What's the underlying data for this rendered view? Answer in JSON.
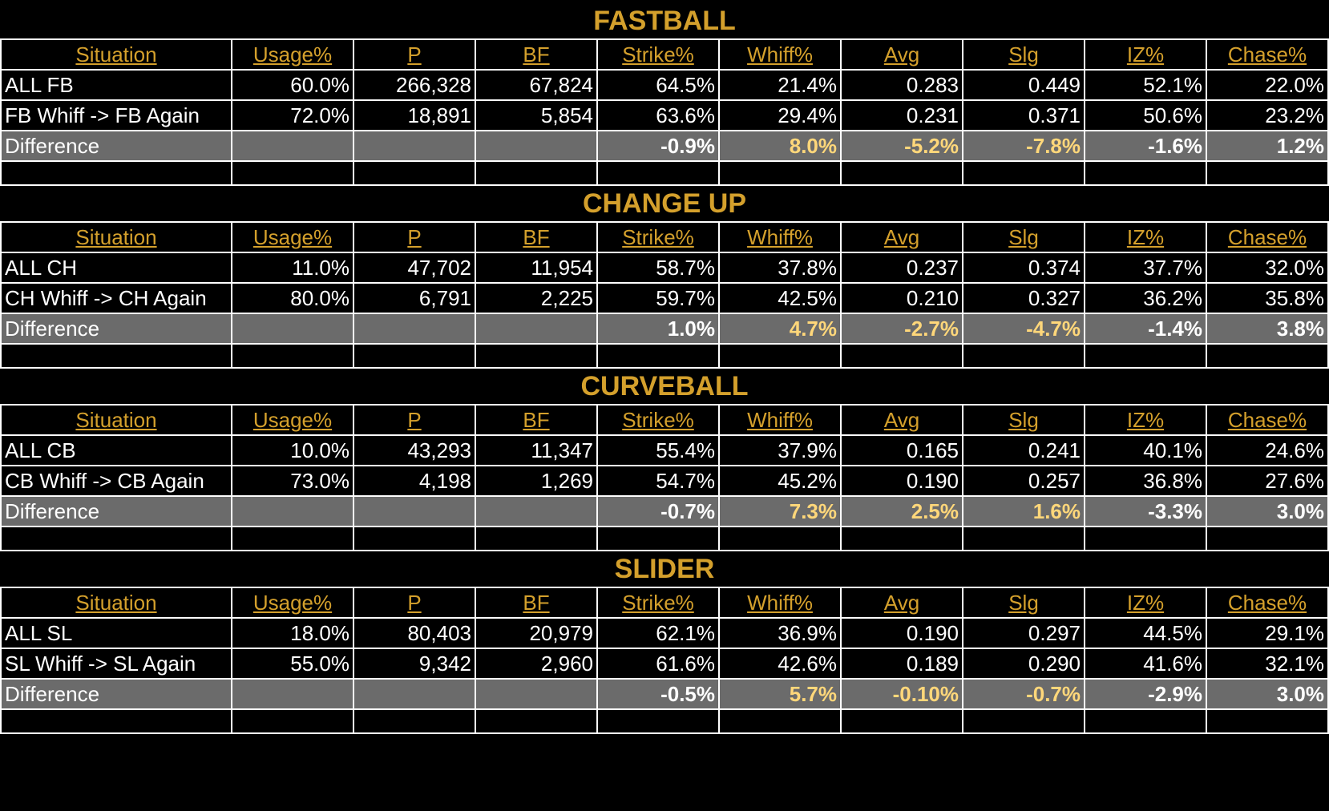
{
  "headers": [
    "Situation",
    "Usage%",
    "P",
    "BF",
    "Strike%",
    "Whiff%",
    "Avg",
    "Slg",
    "IZ%",
    "Chase%"
  ],
  "colors": {
    "background": "#000000",
    "gold": "#d4a02c",
    "diff_row": "#6b6b6b",
    "highlight": "#ffd77a",
    "text": "#ffffff"
  },
  "sections": [
    {
      "title": "FASTBALL",
      "rows": [
        [
          "ALL FB",
          "60.0%",
          "266,328",
          "67,824",
          "64.5%",
          "21.4%",
          "0.283",
          "0.449",
          "52.1%",
          "22.0%"
        ],
        [
          "FB Whiff -> FB Again",
          "72.0%",
          "18,891",
          "5,854",
          "63.6%",
          "29.4%",
          "0.231",
          "0.371",
          "50.6%",
          "23.2%"
        ]
      ],
      "diff": [
        "Difference",
        "",
        "",
        "",
        "-0.9%",
        "8.0%",
        "-5.2%",
        "-7.8%",
        "-1.6%",
        "1.2%"
      ]
    },
    {
      "title": "CHANGE UP",
      "rows": [
        [
          "ALL CH",
          "11.0%",
          "47,702",
          "11,954",
          "58.7%",
          "37.8%",
          "0.237",
          "0.374",
          "37.7%",
          "32.0%"
        ],
        [
          "CH Whiff -> CH Again",
          "80.0%",
          "6,791",
          "2,225",
          "59.7%",
          "42.5%",
          "0.210",
          "0.327",
          "36.2%",
          "35.8%"
        ]
      ],
      "diff": [
        "Difference",
        "",
        "",
        "",
        "1.0%",
        "4.7%",
        "-2.7%",
        "-4.7%",
        "-1.4%",
        "3.8%"
      ]
    },
    {
      "title": "CURVEBALL",
      "rows": [
        [
          "ALL CB",
          "10.0%",
          "43,293",
          "11,347",
          "55.4%",
          "37.9%",
          "0.165",
          "0.241",
          "40.1%",
          "24.6%"
        ],
        [
          "CB Whiff -> CB Again",
          "73.0%",
          "4,198",
          "1,269",
          "54.7%",
          "45.2%",
          "0.190",
          "0.257",
          "36.8%",
          "27.6%"
        ]
      ],
      "diff": [
        "Difference",
        "",
        "",
        "",
        "-0.7%",
        "7.3%",
        "2.5%",
        "1.6%",
        "-3.3%",
        "3.0%"
      ]
    },
    {
      "title": "SLIDER",
      "rows": [
        [
          "ALL SL",
          "18.0%",
          "80,403",
          "20,979",
          "62.1%",
          "36.9%",
          "0.190",
          "0.297",
          "44.5%",
          "29.1%"
        ],
        [
          "SL Whiff -> SL Again",
          "55.0%",
          "9,342",
          "2,960",
          "61.6%",
          "42.6%",
          "0.189",
          "0.290",
          "41.6%",
          "32.1%"
        ]
      ],
      "diff": [
        "Difference",
        "",
        "",
        "",
        "-0.5%",
        "5.7%",
        "-0.10%",
        "-0.7%",
        "-2.9%",
        "3.0%"
      ]
    }
  ]
}
